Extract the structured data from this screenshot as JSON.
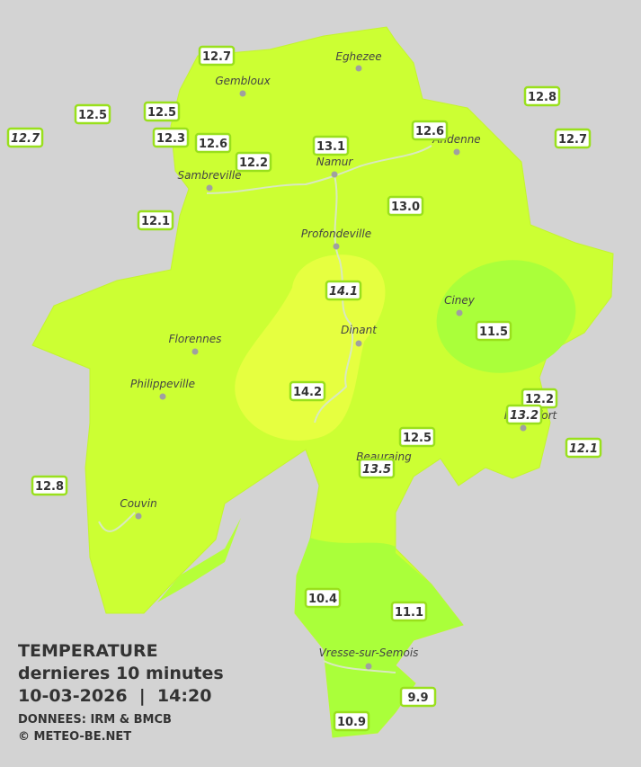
{
  "map": {
    "towns": [
      "Eghezee",
      "Gembloux",
      "Andenne",
      "Namur",
      "Sambreville",
      "Profondeville",
      "Ciney",
      "Florennes",
      "Dinant",
      "Philippeville",
      "Rochefort",
      "Beauraing",
      "Couvin",
      "Vresse-sur-Semois"
    ],
    "stations": [
      {
        "label": "12.7"
      },
      {
        "label": "12.5"
      },
      {
        "label": "12.5"
      },
      {
        "label": "12.7",
        "italic": true
      },
      {
        "label": "12.3"
      },
      {
        "label": "12.6"
      },
      {
        "label": "12.2"
      },
      {
        "label": "13.1"
      },
      {
        "label": "12.6"
      },
      {
        "label": "12.8"
      },
      {
        "label": "12.7"
      },
      {
        "label": "13.0"
      },
      {
        "label": "12.1"
      },
      {
        "label": "14.1",
        "italic": true
      },
      {
        "label": "11.5"
      },
      {
        "label": "14.2"
      },
      {
        "label": "12.2"
      },
      {
        "label": "13.2",
        "italic": true
      },
      {
        "label": "12.1",
        "italic": true
      },
      {
        "label": "12.5"
      },
      {
        "label": "13.5",
        "italic": true
      },
      {
        "label": "12.8"
      },
      {
        "label": "10.4"
      },
      {
        "label": "11.1"
      },
      {
        "label": "9.9"
      },
      {
        "label": "10.9"
      }
    ]
  },
  "legend": {
    "title": "TEMPERATURE",
    "subtitle": "dernieres 10 minutes",
    "datetime": "10-03-2026  |  14:20",
    "source": "DONNEES: IRM & BMCB",
    "copyright": "© METEO-BE.NET"
  }
}
